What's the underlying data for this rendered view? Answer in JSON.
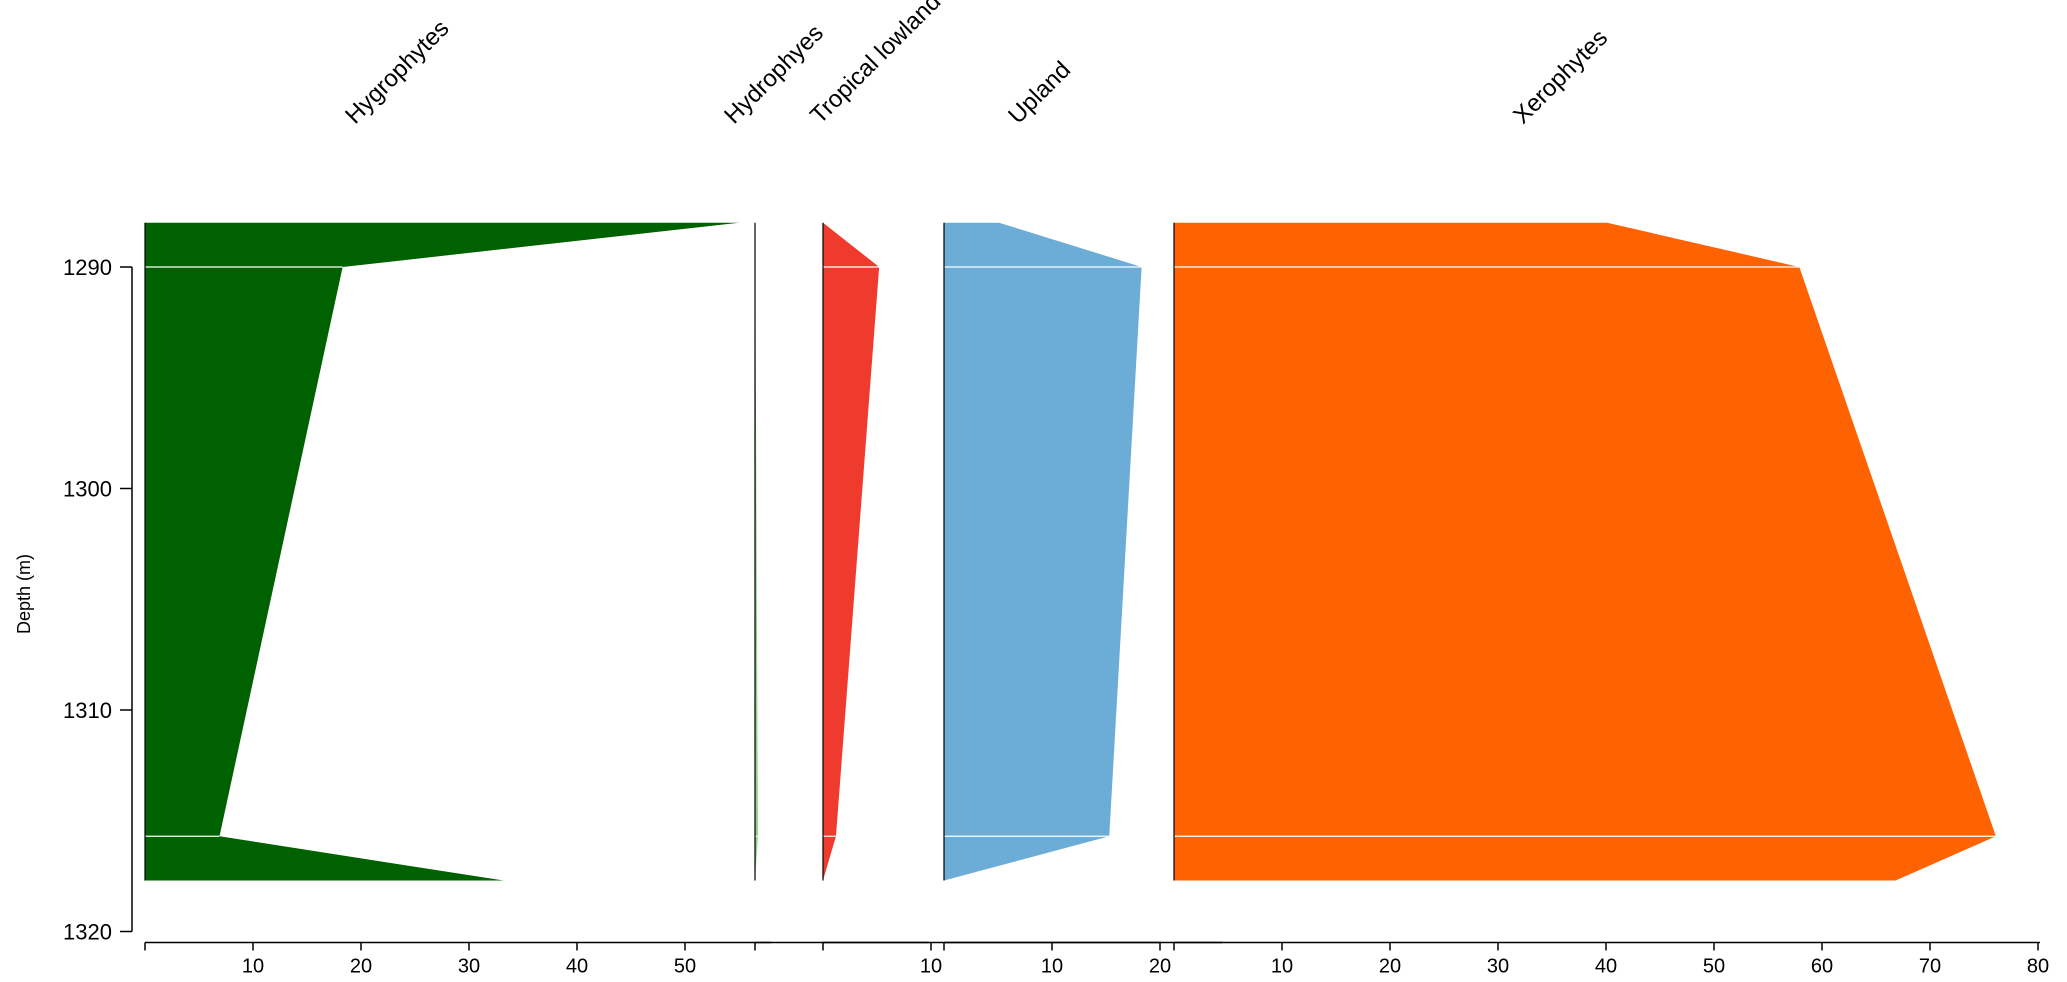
{
  "chart_data": {
    "type": "area",
    "ylabel": "Depth (m)",
    "y_ticks": [
      "1290",
      "1300",
      "1310",
      "1320"
    ],
    "ylim": [
      1288,
      1320
    ],
    "grid": false,
    "depths": [
      1288,
      1290,
      1315.7,
      1317.7
    ],
    "series": [
      {
        "name": "Hygrophytes",
        "values": [
          55,
          18.3,
          6.9,
          33.2
        ],
        "color": "#006100",
        "xlim": [
          0,
          55
        ],
        "x_ticks": [
          "10",
          "20",
          "30",
          "40",
          "50"
        ]
      },
      {
        "name": "Hydrophyes",
        "values": [
          0,
          0.05,
          0.5,
          0
        ],
        "color": "#8fd48a",
        "xlim": [
          0,
          1
        ],
        "x_ticks": []
      },
      {
        "name": "Tropical lowland",
        "values": [
          0,
          5.2,
          1.2,
          0
        ],
        "color": "#ee3b2e",
        "xlim": [
          0,
          10
        ],
        "x_ticks": [
          "10"
        ]
      },
      {
        "name": "Upland",
        "values": [
          5.1,
          18.3,
          15.3,
          0
        ],
        "color": "#6badd6",
        "xlim": [
          0,
          20
        ],
        "x_ticks": [
          "10",
          "20"
        ]
      },
      {
        "name": "Xerophytes",
        "values": [
          40.1,
          57.9,
          76.1,
          66.8
        ],
        "color": "#ff6200",
        "xlim": [
          0,
          80
        ],
        "x_ticks": [
          "10",
          "20",
          "30",
          "40",
          "50",
          "60",
          "70",
          "80"
        ]
      }
    ]
  }
}
